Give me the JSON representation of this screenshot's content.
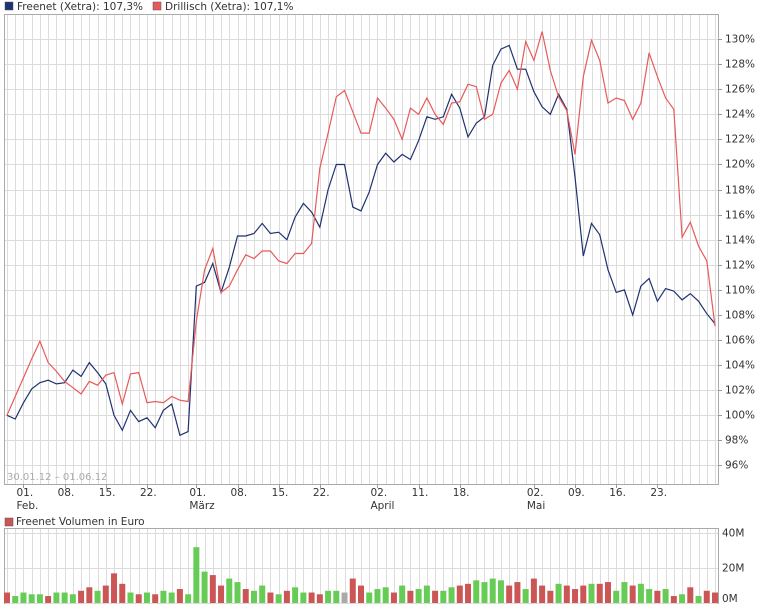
{
  "chart_data": [
    {
      "type": "line",
      "date_range": "30.01.12 – 01.06.12",
      "categories": [
        null,
        null,
        "01.",
        null,
        null,
        null,
        null,
        "08.",
        null,
        null,
        null,
        null,
        "15.",
        null,
        null,
        null,
        null,
        "22.",
        null,
        null,
        null,
        null,
        null,
        "01.",
        null,
        null,
        null,
        null,
        "08.",
        null,
        null,
        null,
        null,
        "15.",
        null,
        null,
        null,
        null,
        "22.",
        null,
        null,
        null,
        null,
        null,
        null,
        "02.",
        null,
        null,
        null,
        null,
        "11.",
        null,
        null,
        null,
        null,
        "18.",
        null,
        null,
        null,
        null,
        null,
        null,
        null,
        null,
        "02.",
        null,
        null,
        null,
        null,
        "09.",
        null,
        null,
        null,
        null,
        "16.",
        null,
        null,
        null,
        null,
        "23.",
        null,
        null,
        null,
        null,
        null,
        null,
        null
      ],
      "month_labels": [
        null,
        null,
        "Feb.",
        null,
        null,
        null,
        null,
        null,
        null,
        null,
        null,
        null,
        null,
        null,
        null,
        null,
        null,
        null,
        null,
        null,
        null,
        null,
        null,
        "März",
        null,
        null,
        null,
        null,
        null,
        null,
        null,
        null,
        null,
        null,
        null,
        null,
        null,
        null,
        null,
        null,
        null,
        null,
        null,
        null,
        null,
        "April",
        null,
        null,
        null,
        null,
        null,
        null,
        null,
        null,
        null,
        null,
        null,
        null,
        null,
        null,
        null,
        null,
        null,
        null,
        "Mai",
        null,
        null,
        null,
        null,
        null,
        null,
        null,
        null,
        null,
        null,
        null,
        null,
        null,
        null,
        null,
        null,
        null,
        null,
        null,
        null,
        null,
        null
      ],
      "ylim": [
        94.6,
        132
      ],
      "yticks": [
        {
          "value": 96,
          "label": "96%"
        },
        {
          "value": 98,
          "label": "98%"
        },
        {
          "value": 100,
          "label": "100%"
        },
        {
          "value": 102,
          "label": "102%"
        },
        {
          "value": 104,
          "label": "104%"
        },
        {
          "value": 106,
          "label": "106%"
        },
        {
          "value": 108,
          "label": "108%"
        },
        {
          "value": 110,
          "label": "110%"
        },
        {
          "value": 112,
          "label": "112%"
        },
        {
          "value": 114,
          "label": "114%"
        },
        {
          "value": 116,
          "label": "116%"
        },
        {
          "value": 118,
          "label": "118%"
        },
        {
          "value": 120,
          "label": "120%"
        },
        {
          "value": 122,
          "label": "122%"
        },
        {
          "value": 124,
          "label": "124%"
        },
        {
          "value": 126,
          "label": "126%"
        },
        {
          "value": 128,
          "label": "128%"
        },
        {
          "value": 130,
          "label": "130%"
        }
      ],
      "grid": true,
      "series": [
        {
          "name": "Freenet (Xetra): 107,3%",
          "color": "#1f3270",
          "values": [
            100.0,
            99.7,
            101.0,
            102.1,
            102.6,
            102.8,
            102.5,
            102.6,
            103.6,
            103.1,
            104.2,
            103.4,
            102.5,
            100.0,
            98.8,
            100.4,
            99.5,
            99.8,
            99.0,
            100.4,
            100.9,
            98.4,
            98.7,
            110.3,
            110.6,
            112.1,
            109.8,
            111.8,
            114.3,
            114.3,
            114.5,
            115.3,
            114.5,
            114.6,
            114.0,
            115.8,
            116.9,
            116.2,
            115.0,
            118.0,
            120.0,
            120.0,
            116.6,
            116.3,
            117.8,
            120.0,
            120.9,
            120.2,
            120.8,
            120.4,
            121.9,
            123.8,
            123.6,
            123.8,
            125.6,
            124.5,
            122.2,
            123.3,
            123.8,
            127.9,
            129.2,
            129.5,
            127.6,
            127.6,
            125.8,
            124.6,
            124.0,
            125.6,
            124.4,
            119.0,
            112.7,
            115.3,
            114.4,
            111.6,
            109.8,
            110.0,
            108.0,
            110.3,
            110.9,
            109.1,
            110.1,
            109.9,
            109.2,
            109.7,
            109.1,
            108.1,
            107.3
          ]
        },
        {
          "name": "Drillisch (Xetra): 107,1%",
          "color": "#e85a5a",
          "values": [
            100.0,
            101.5,
            103.0,
            104.5,
            105.9,
            104.2,
            103.5,
            102.7,
            102.2,
            101.7,
            102.7,
            102.4,
            103.2,
            103.4,
            100.9,
            103.3,
            103.4,
            101.0,
            101.1,
            101.0,
            101.5,
            101.2,
            101.1,
            107.5,
            111.6,
            113.3,
            109.8,
            110.3,
            111.6,
            112.8,
            112.5,
            113.1,
            113.1,
            112.3,
            112.1,
            112.9,
            112.9,
            113.7,
            119.7,
            122.5,
            125.4,
            125.9,
            124.2,
            122.5,
            122.5,
            125.3,
            124.5,
            123.6,
            122.0,
            124.5,
            124.0,
            125.3,
            124.0,
            123.2,
            124.9,
            125.0,
            126.4,
            126.2,
            123.6,
            124.0,
            126.5,
            127.5,
            126.0,
            129.8,
            128.3,
            130.6,
            127.5,
            125.4,
            124.3,
            120.8,
            127.0,
            129.9,
            128.3,
            124.9,
            125.3,
            125.1,
            123.6,
            124.9,
            128.9,
            127.0,
            125.3,
            124.4,
            114.2,
            115.4,
            113.5,
            112.3,
            107.1
          ]
        }
      ]
    },
    {
      "type": "bar",
      "title": "Freenet Volumen in Euro",
      "title_color": "#cc5555",
      "ylim": [
        0,
        43
      ],
      "yticks": [
        {
          "value": 0,
          "label": "0M"
        },
        {
          "value": 20,
          "label": "20M"
        },
        {
          "value": 40,
          "label": "40M"
        }
      ],
      "values": [
        6,
        4,
        6,
        5,
        5,
        4,
        6,
        6,
        5,
        7,
        9,
        7,
        10,
        17,
        11,
        6,
        5,
        6,
        5,
        7,
        6,
        8,
        5,
        32,
        18,
        16,
        10,
        14,
        12,
        8,
        7,
        10,
        6,
        5,
        7,
        9,
        6,
        6,
        5,
        7,
        7,
        6,
        14,
        10,
        6,
        8,
        9,
        6,
        10,
        7,
        8,
        10,
        7,
        7,
        9,
        10,
        11,
        13,
        12,
        14,
        13,
        10,
        12,
        8,
        14,
        10,
        7,
        11,
        10,
        8,
        10,
        11,
        11,
        12,
        7,
        12,
        10,
        11,
        8,
        7,
        8,
        4,
        5,
        9,
        4,
        7,
        6
      ],
      "colors": [
        "#cc5555",
        "#66cc55",
        "#66cc55",
        "#66cc55",
        "#66cc55",
        "#cc5555",
        "#66cc55",
        "#66cc55",
        "#66cc55",
        "#cc5555",
        "#cc5555",
        "#66cc55",
        "#cc5555",
        "#cc5555",
        "#cc5555",
        "#66cc55",
        "#cc5555",
        "#66cc55",
        "#cc5555",
        "#66cc55",
        "#66cc55",
        "#cc5555",
        "#66cc55",
        "#66cc55",
        "#66cc55",
        "#cc5555",
        "#cc5555",
        "#66cc55",
        "#66cc55",
        "#cc5555",
        "#66cc55",
        "#66cc55",
        "#cc5555",
        "#66cc55",
        "#cc5555",
        "#66cc55",
        "#66cc55",
        "#cc5555",
        "#cc5555",
        "#66cc55",
        "#66cc55",
        "#aaaaaa",
        "#cc5555",
        "#cc5555",
        "#66cc55",
        "#66cc55",
        "#66cc55",
        "#cc5555",
        "#66cc55",
        "#cc5555",
        "#66cc55",
        "#66cc55",
        "#cc5555",
        "#66cc55",
        "#66cc55",
        "#cc5555",
        "#cc5555",
        "#66cc55",
        "#66cc55",
        "#66cc55",
        "#66cc55",
        "#cc5555",
        "#cc5555",
        "#66cc55",
        "#cc5555",
        "#cc5555",
        "#cc5555",
        "#66cc55",
        "#cc5555",
        "#cc5555",
        "#cc5555",
        "#66cc55",
        "#cc5555",
        "#cc5555",
        "#66cc55",
        "#66cc55",
        "#cc5555",
        "#66cc55",
        "#66cc55",
        "#cc5555",
        "#66cc55",
        "#cc5555",
        "#66cc55",
        "#cc5555",
        "#66cc55",
        "#cc5555",
        "#cc5555"
      ]
    }
  ]
}
